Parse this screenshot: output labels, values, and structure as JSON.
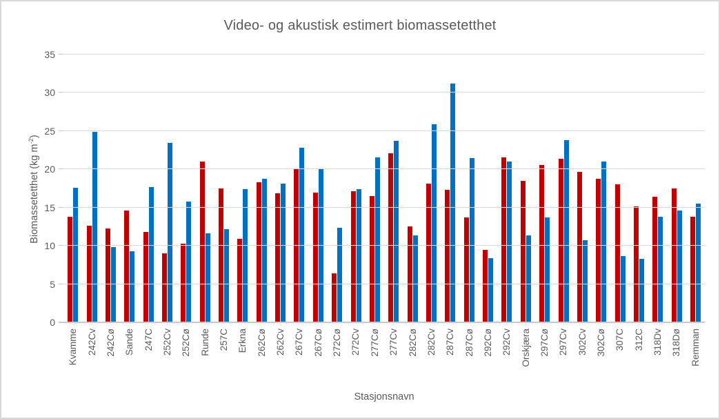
{
  "chart_data": {
    "type": "bar",
    "title": "Video- og akustisk estimert biomassetetthet",
    "xlabel": "Stasjonsnavn",
    "ylabel": "Biomassetetthet (kg m-2)",
    "ylabel_parts": {
      "main": "Biomassetetthet  (kg m",
      "sup": "-2",
      "end": ")"
    },
    "ylim": [
      0,
      35
    ],
    "yticks": [
      0,
      5,
      10,
      15,
      20,
      25,
      30,
      35
    ],
    "grid": true,
    "legend_position": "none",
    "categories": [
      "Kvamme",
      "242Cv",
      "242Cø",
      "Sande",
      "247C",
      "252Cv",
      "252Cø",
      "Runde",
      "257C",
      "Erkna",
      "262Cø",
      "262Cv",
      "267Cv",
      "267Cø",
      "272Cø",
      "272Cv",
      "277Cø",
      "277Cv",
      "282Cø",
      "282Cv",
      "287Cv",
      "287Cø",
      "292Cø",
      "292Cv",
      "Orskjæra",
      "297Cø",
      "297Cv",
      "302Cv",
      "302Cø",
      "307C",
      "312C",
      "318Dv",
      "318Dø",
      "Remman"
    ],
    "series": [
      {
        "id": "red-series",
        "color": "#C00000",
        "values": [
          13.8,
          12.6,
          12.3,
          14.6,
          11.8,
          9.0,
          10.3,
          21.0,
          17.5,
          10.9,
          18.3,
          16.9,
          20.1,
          17.0,
          6.4,
          17.1,
          16.5,
          22.1,
          12.5,
          18.1,
          17.3,
          13.7,
          9.5,
          21.6,
          18.5,
          20.6,
          21.4,
          19.7,
          18.8,
          18.0,
          15.2,
          16.4,
          17.5,
          13.8
        ]
      },
      {
        "id": "blue-series",
        "color": "#0070C0",
        "values": [
          17.6,
          24.9,
          9.8,
          9.3,
          17.7,
          23.5,
          15.8,
          11.6,
          12.2,
          17.4,
          18.8,
          18.1,
          22.8,
          20.1,
          12.4,
          17.4,
          21.6,
          23.7,
          11.4,
          25.9,
          31.2,
          21.5,
          8.4,
          21.0,
          11.4,
          13.7,
          23.8,
          10.7,
          21.0,
          8.7,
          8.3,
          13.8,
          14.6,
          15.5
        ]
      }
    ],
    "grid_color": "#D9D9D9"
  }
}
